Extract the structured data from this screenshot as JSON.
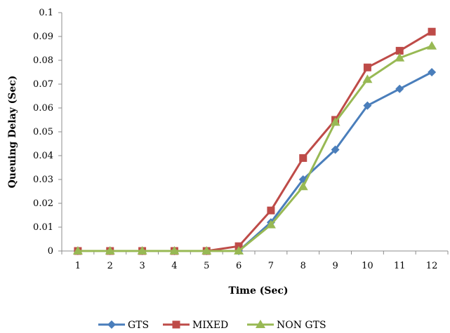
{
  "chart_data": {
    "type": "line",
    "title": "",
    "xlabel": "Time (Sec)",
    "ylabel": "Queuing Delay (Sec)",
    "x": [
      1,
      2,
      3,
      4,
      5,
      6,
      7,
      8,
      9,
      10,
      11,
      12
    ],
    "x_tick_labels": [
      "1",
      "2",
      "3",
      "4",
      "5",
      "6",
      "7",
      "8",
      "9",
      "10",
      "11",
      "12"
    ],
    "ylim": [
      0,
      0.1
    ],
    "y_tick_labels": [
      "0",
      "0.01",
      "0.02",
      "0.03",
      "0.04",
      "0.05",
      "0.06",
      "0.07",
      "0.08",
      "0.09",
      "0.1"
    ],
    "grid": false,
    "legend_position": "bottom",
    "series": [
      {
        "name": "GTS",
        "color": "#4a7ebb",
        "marker": "diamond",
        "values": [
          0,
          0,
          0,
          0,
          0,
          0,
          0.012,
          0.03,
          0.0425,
          0.061,
          0.068,
          0.075
        ]
      },
      {
        "name": "MIXED",
        "color": "#be4b48",
        "marker": "square",
        "values": [
          0,
          0,
          0,
          0,
          0,
          0.002,
          0.017,
          0.039,
          0.055,
          0.077,
          0.084,
          0.092
        ]
      },
      {
        "name": "NON GTS",
        "color": "#98b954",
        "marker": "triangle",
        "values": [
          0,
          0,
          0,
          0,
          0,
          0,
          0.011,
          0.027,
          0.054,
          0.072,
          0.081,
          0.086
        ]
      }
    ]
  }
}
